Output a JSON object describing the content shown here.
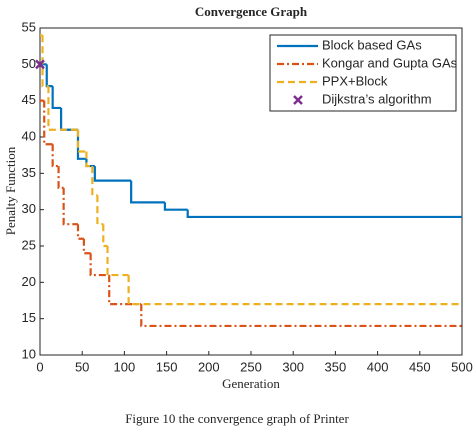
{
  "chart_data": {
    "type": "line",
    "drawstyle": "steps-post",
    "title": "Convergence Graph",
    "x_label": "Generation",
    "y_label": "Penalty Function",
    "caption": "Figure 10 the convergence graph of Printer",
    "xlim": [
      0,
      500
    ],
    "ylim": [
      10,
      55
    ],
    "xticks": [
      0,
      50,
      100,
      150,
      200,
      250,
      300,
      350,
      400,
      450,
      500
    ],
    "yticks": [
      10,
      15,
      20,
      25,
      30,
      35,
      40,
      45,
      50,
      55
    ],
    "grid": false,
    "legend": "upper right",
    "series": [
      {
        "name": "Block based GAs",
        "color": "#0072bd",
        "line_style": "solid",
        "x": [
          0,
          8,
          15,
          25,
          45,
          55,
          65,
          108,
          148,
          175,
          500
        ],
        "values": [
          50,
          47,
          44,
          41,
          37,
          36,
          34,
          31,
          30,
          29,
          29
        ]
      },
      {
        "name": "Kongar and Gupta GAs",
        "color": "#d95319",
        "line_style": "dashdot",
        "x": [
          0,
          5,
          15,
          22,
          28,
          45,
          52,
          60,
          82,
          120,
          500
        ],
        "values": [
          45,
          39,
          36,
          33,
          28,
          26,
          24,
          21,
          17,
          14,
          14
        ]
      },
      {
        "name": "PPX+Block",
        "color": "#edb120",
        "line_style": "dashed",
        "x": [
          0,
          3,
          10,
          45,
          55,
          62,
          68,
          75,
          80,
          105,
          500
        ],
        "values": [
          54,
          47,
          41,
          38,
          36,
          32,
          28,
          25,
          21,
          17,
          17
        ]
      },
      {
        "name": "Dijkstra’s algorithm",
        "color": "#7e2f8e",
        "line_style": "none",
        "marker": "x",
        "x": [
          0
        ],
        "values": [
          50
        ]
      }
    ]
  }
}
